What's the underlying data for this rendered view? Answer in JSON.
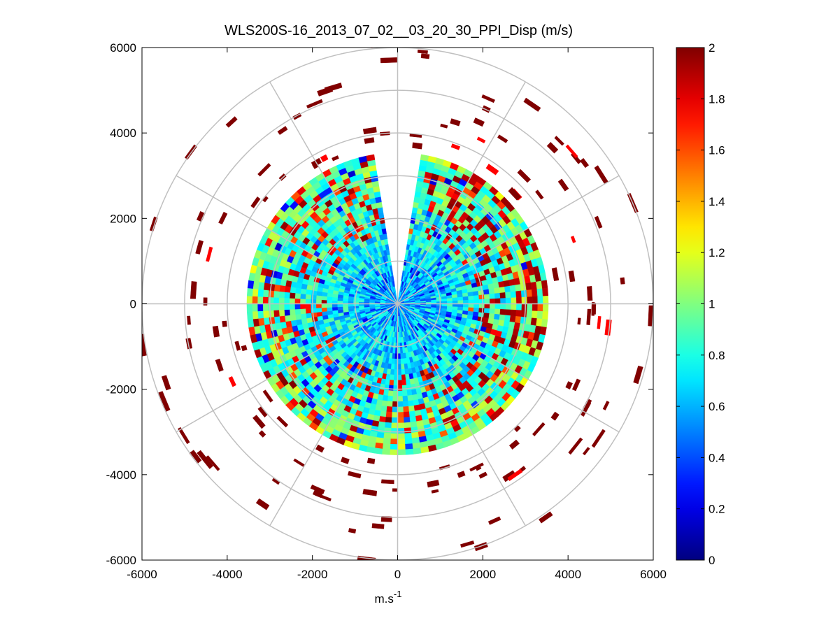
{
  "chart_data": {
    "type": "heatmap",
    "subtype": "polar-ppi",
    "title": "WLS200S-16_2013_07_02__03_20_30_PPI_Disp (m/s)",
    "xlabel": "m.s",
    "xlabel_sup": "-1",
    "ylabel": "",
    "xlim": [
      -6000,
      6000
    ],
    "ylim": [
      -6000,
      6000
    ],
    "x_ticks": [
      "-6000",
      "-4000",
      "-2000",
      "0",
      "2000",
      "4000",
      "6000"
    ],
    "y_ticks": [
      "6000",
      "4000",
      "2000",
      "0",
      "-2000",
      "-4000",
      "-6000"
    ],
    "polar_grid": {
      "ring_radii": [
        1000,
        2000,
        3000,
        4000,
        5000,
        6000
      ],
      "spoke_step_deg": 30
    },
    "data_region": {
      "dense_radius": 3500,
      "outer_radius": 6000,
      "gap_azimuth_deg": [
        -10,
        10
      ]
    },
    "colorbar": {
      "colormap": "jet",
      "range": [
        0,
        2
      ],
      "ticks": [
        "2",
        "1.8",
        "1.6",
        "1.4",
        "1.2",
        "1",
        "0.8",
        "0.6",
        "0.4",
        "0.2",
        "0"
      ]
    },
    "grid": true,
    "legend": "none"
  }
}
